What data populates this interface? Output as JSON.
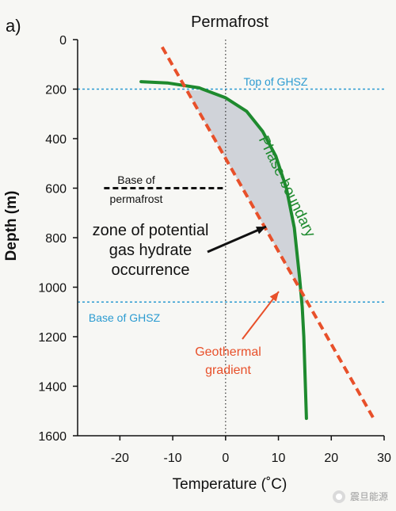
{
  "panel_label": "a)",
  "watermark": "震旦能源",
  "chart_data": {
    "type": "line",
    "title": "Permafrost",
    "xlabel": "Temperature (˚C)",
    "ylabel": "Depth (m)",
    "xlim": [
      -28,
      30
    ],
    "ylim": [
      1600,
      0
    ],
    "x_ticks": [
      -20,
      -10,
      0,
      10,
      20,
      30
    ],
    "y_ticks": [
      0,
      200,
      400,
      600,
      800,
      1000,
      1200,
      1400,
      1600
    ],
    "grid": false,
    "series": [
      {
        "name": "Phase-boundary",
        "color": "#1e8a2e",
        "points": [
          [
            -16,
            170
          ],
          [
            -11,
            175
          ],
          [
            -5,
            195
          ],
          [
            0,
            235
          ],
          [
            4,
            290
          ],
          [
            7,
            370
          ],
          [
            9.5,
            470
          ],
          [
            11.5,
            600
          ],
          [
            13,
            760
          ],
          [
            14,
            960
          ],
          [
            14.5,
            1080
          ],
          [
            14.8,
            1200
          ],
          [
            15.1,
            1400
          ],
          [
            15.3,
            1530
          ]
        ]
      },
      {
        "name": "Geothermal gradient",
        "color": "#e8502a",
        "points": [
          [
            -12,
            30
          ],
          [
            28,
            1530
          ]
        ]
      },
      {
        "name": "Base of permafrost",
        "color": "#111111",
        "points": [
          [
            -23,
            600
          ],
          [
            0,
            600
          ]
        ]
      }
    ],
    "reference_lines": [
      {
        "label": "Top of GHSZ",
        "depth": 200,
        "color": "#2b9bd1"
      },
      {
        "label": "Base of GHSZ",
        "depth": 1060,
        "color": "#2b9bd1"
      }
    ],
    "zero_line": {
      "temperature": 0
    },
    "shaded_region": {
      "label": "zone of potential gas hydrate occurrence",
      "color": "#c9ccd3"
    },
    "annotations": {
      "phase_boundary": "Phase-boundary",
      "base_permafrost_line1": "Base of",
      "base_permafrost_line2": "permafrost",
      "zone_line1": "zone of potential",
      "zone_line2": "gas hydrate",
      "zone_line3": "occurrence",
      "geo_line1": "Geothermal",
      "geo_line2": "gradient"
    }
  }
}
